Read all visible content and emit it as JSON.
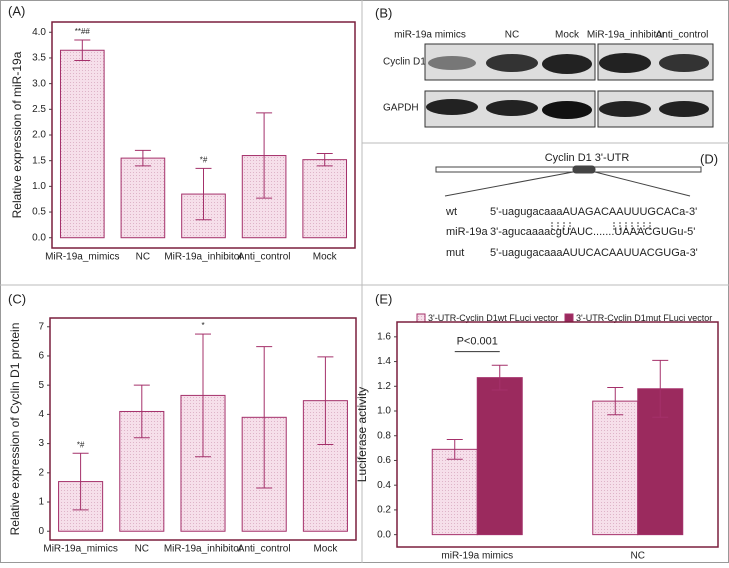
{
  "chart_data": [
    {
      "type": "bar",
      "panel_label": "(A)",
      "y_label": "Relative expression of miR-19a",
      "categories": [
        "MiR-19a_mimics",
        "NC",
        "MiR-19a_inhibitor",
        "Anti_control",
        "Mock"
      ],
      "values": [
        3.65,
        1.55,
        0.85,
        1.6,
        1.52
      ],
      "errors": [
        0.2,
        0.15,
        0.5,
        0.83,
        0.12
      ],
      "bar_labels": [
        "**##",
        null,
        "*#",
        null,
        null
      ],
      "color": "#f6dfea",
      "edge_color": "#a4306a",
      "ylim": [
        -0.2,
        4.2
      ],
      "yticks": [
        {
          "value": 0,
          "label": "0.0"
        },
        0.5,
        {
          "value": 1,
          "label": "1.0"
        },
        1.5,
        {
          "value": 2,
          "label": "2.0"
        },
        2.5,
        {
          "value": 3,
          "label": "3.0"
        },
        3.5,
        {
          "value": 4,
          "label": "4.0"
        }
      ]
    },
    {
      "type": "bar",
      "panel_label": "(C)",
      "y_label": "Relative expression of Cyclin D1 protein",
      "categories": [
        "MiR-19a_mimics",
        "NC",
        "MiR-19a_inhibitor",
        "Anti_control",
        "Mock"
      ],
      "values": [
        1.7,
        4.1,
        4.65,
        3.9,
        4.47
      ],
      "errors": [
        0.97,
        0.9,
        2.1,
        2.42,
        1.5
      ],
      "bar_labels": [
        "*#",
        null,
        "*",
        null,
        null
      ],
      "color": "#f6dfea",
      "edge_color": "#a4306a",
      "ylim": [
        -0.3,
        7.3
      ],
      "yticks": [
        0,
        1,
        2,
        3,
        4,
        5,
        6,
        7
      ]
    },
    {
      "type": "grouped_bar",
      "panel_label": "(E)",
      "y_label": "Luciferase activity",
      "categories": [
        "miR-19a mimics",
        "NC"
      ],
      "series": [
        {
          "name": "3'-UTR-Cyclin D1wt FLuci vector",
          "color": "#f6dfea",
          "values": [
            0.69,
            1.08
          ],
          "errors": [
            0.08,
            0.11
          ]
        },
        {
          "name": "3'-UTR-Cyclin D1mut FLuci vector",
          "color": "#9b2a5e",
          "values": [
            1.27,
            1.18
          ],
          "errors": [
            0.1,
            0.23
          ]
        }
      ],
      "annotation": "P<0.001",
      "edge_color": "#a4306a",
      "ylim": [
        -0.1,
        1.72
      ],
      "yticks": [
        {
          "value": 0,
          "label": "0.0"
        },
        0.2,
        0.4,
        0.6,
        0.8,
        {
          "value": 1,
          "label": "1.0"
        },
        1.2,
        1.4,
        1.6
      ]
    }
  ],
  "blot": {
    "panel_label": "(B)",
    "lanes": [
      "miR-19a mimics",
      "NC",
      "Mock",
      "MiR-19a_inhibitor",
      "Anti_control"
    ],
    "rows": [
      "Cyclin D1",
      "GAPDH"
    ]
  },
  "diagram": {
    "panel_label": "(D)",
    "title": "Cyclin D1 3'-UTR",
    "rows": [
      {
        "label": "wt",
        "sequence": "5'-uagugacaaaAUAGACAAUUUGCACa-3'"
      },
      {
        "label": "miR-19a",
        "sequence": "3'-agucaaaacgUAUC.......UAAACGUGu-5'"
      },
      {
        "label": "mut",
        "sequence": "5'-uagugacaaaAUUCACAAUUACGUGa-3'"
      }
    ]
  }
}
